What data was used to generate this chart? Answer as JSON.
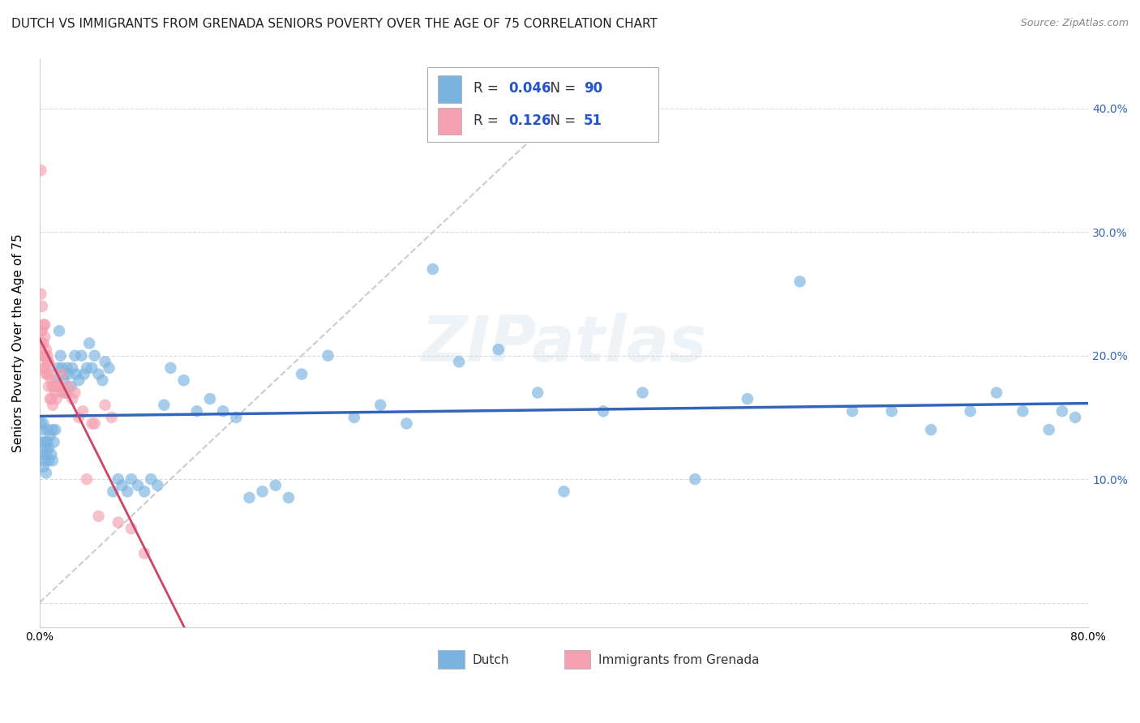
{
  "title": "DUTCH VS IMMIGRANTS FROM GRENADA SENIORS POVERTY OVER THE AGE OF 75 CORRELATION CHART",
  "source": "Source: ZipAtlas.com",
  "ylabel": "Seniors Poverty Over the Age of 75",
  "watermark": "ZIPatlas",
  "legend1_label": "Dutch",
  "legend2_label": "Immigrants from Grenada",
  "R1": 0.046,
  "N1": 90,
  "R2": 0.126,
  "N2": 51,
  "color_dutch": "#7ab3e0",
  "color_grenada": "#f4a0b0",
  "color_dutch_line": "#3366bb",
  "color_grenada_line": "#cc4466",
  "color_diag_line": "#ccbbbb",
  "xlim": [
    0.0,
    0.8
  ],
  "ylim": [
    -0.02,
    0.44
  ],
  "yticks": [
    0.0,
    0.1,
    0.2,
    0.3,
    0.4
  ],
  "ytick_labels": [
    "",
    "10.0%",
    "20.0%",
    "30.0%",
    "40.0%"
  ],
  "dutch_x": [
    0.001,
    0.001,
    0.002,
    0.002,
    0.003,
    0.003,
    0.004,
    0.004,
    0.005,
    0.005,
    0.005,
    0.006,
    0.006,
    0.007,
    0.007,
    0.008,
    0.009,
    0.01,
    0.01,
    0.011,
    0.012,
    0.013,
    0.014,
    0.015,
    0.016,
    0.017,
    0.018,
    0.019,
    0.02,
    0.021,
    0.022,
    0.024,
    0.025,
    0.027,
    0.028,
    0.03,
    0.032,
    0.034,
    0.036,
    0.038,
    0.04,
    0.042,
    0.045,
    0.048,
    0.05,
    0.053,
    0.056,
    0.06,
    0.063,
    0.067,
    0.07,
    0.075,
    0.08,
    0.085,
    0.09,
    0.095,
    0.1,
    0.11,
    0.12,
    0.13,
    0.14,
    0.15,
    0.16,
    0.17,
    0.18,
    0.19,
    0.2,
    0.22,
    0.24,
    0.26,
    0.28,
    0.3,
    0.32,
    0.35,
    0.38,
    0.4,
    0.43,
    0.46,
    0.5,
    0.54,
    0.58,
    0.62,
    0.65,
    0.68,
    0.71,
    0.73,
    0.75,
    0.77,
    0.78,
    0.79
  ],
  "dutch_y": [
    0.13,
    0.145,
    0.12,
    0.14,
    0.11,
    0.145,
    0.13,
    0.115,
    0.125,
    0.12,
    0.105,
    0.13,
    0.14,
    0.125,
    0.115,
    0.135,
    0.12,
    0.14,
    0.115,
    0.13,
    0.14,
    0.18,
    0.19,
    0.22,
    0.2,
    0.19,
    0.18,
    0.185,
    0.17,
    0.19,
    0.185,
    0.175,
    0.19,
    0.2,
    0.185,
    0.18,
    0.2,
    0.185,
    0.19,
    0.21,
    0.19,
    0.2,
    0.185,
    0.18,
    0.195,
    0.19,
    0.09,
    0.1,
    0.095,
    0.09,
    0.1,
    0.095,
    0.09,
    0.1,
    0.095,
    0.16,
    0.19,
    0.18,
    0.155,
    0.165,
    0.155,
    0.15,
    0.085,
    0.09,
    0.095,
    0.085,
    0.185,
    0.2,
    0.15,
    0.16,
    0.145,
    0.27,
    0.195,
    0.205,
    0.17,
    0.09,
    0.155,
    0.17,
    0.1,
    0.165,
    0.26,
    0.155,
    0.155,
    0.14,
    0.155,
    0.17,
    0.155,
    0.14,
    0.155,
    0.15
  ],
  "grenada_x": [
    0.001,
    0.001,
    0.001,
    0.002,
    0.002,
    0.002,
    0.002,
    0.003,
    0.003,
    0.003,
    0.003,
    0.004,
    0.004,
    0.004,
    0.005,
    0.005,
    0.005,
    0.006,
    0.006,
    0.006,
    0.007,
    0.007,
    0.008,
    0.008,
    0.009,
    0.009,
    0.01,
    0.01,
    0.011,
    0.012,
    0.013,
    0.014,
    0.015,
    0.016,
    0.017,
    0.018,
    0.02,
    0.022,
    0.025,
    0.027,
    0.03,
    0.033,
    0.036,
    0.04,
    0.042,
    0.045,
    0.05,
    0.055,
    0.06,
    0.07,
    0.08
  ],
  "grenada_y": [
    0.35,
    0.25,
    0.22,
    0.24,
    0.22,
    0.21,
    0.2,
    0.225,
    0.21,
    0.2,
    0.19,
    0.225,
    0.215,
    0.2,
    0.205,
    0.19,
    0.185,
    0.2,
    0.195,
    0.185,
    0.195,
    0.175,
    0.185,
    0.165,
    0.18,
    0.165,
    0.175,
    0.16,
    0.175,
    0.17,
    0.165,
    0.175,
    0.175,
    0.175,
    0.185,
    0.17,
    0.17,
    0.175,
    0.165,
    0.17,
    0.15,
    0.155,
    0.1,
    0.145,
    0.145,
    0.07,
    0.16,
    0.15,
    0.065,
    0.06,
    0.04
  ],
  "title_fontsize": 11,
  "source_fontsize": 9,
  "axis_label_fontsize": 11,
  "tick_fontsize": 10,
  "legend_fontsize": 12,
  "background_color": "#ffffff",
  "grid_color": "#cccccc"
}
